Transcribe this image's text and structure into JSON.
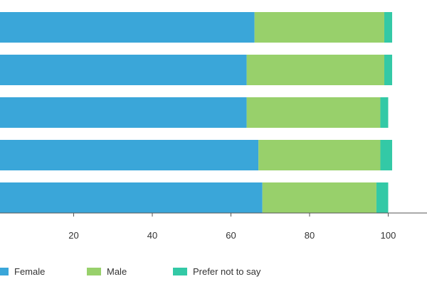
{
  "chart_data": {
    "type": "bar",
    "orientation": "horizontal",
    "stacked": true,
    "categories": [
      "",
      "",
      "",
      "",
      ""
    ],
    "series": [
      {
        "name": "Female",
        "color": "#3aa6d9",
        "values": [
          66,
          64,
          64,
          67,
          68
        ]
      },
      {
        "name": "Male",
        "color": "#98d06b",
        "values": [
          33,
          35,
          34,
          31,
          29
        ]
      },
      {
        "name": "Prefer not to say",
        "color": "#33c9a6",
        "values": [
          2,
          2,
          2,
          3,
          3
        ]
      }
    ],
    "x_ticks": [
      20,
      40,
      60,
      80,
      100
    ],
    "xlim": [
      0,
      110
    ],
    "title": "",
    "xlabel": "",
    "ylabel": "",
    "grid": false,
    "legend_position": "bottom"
  }
}
